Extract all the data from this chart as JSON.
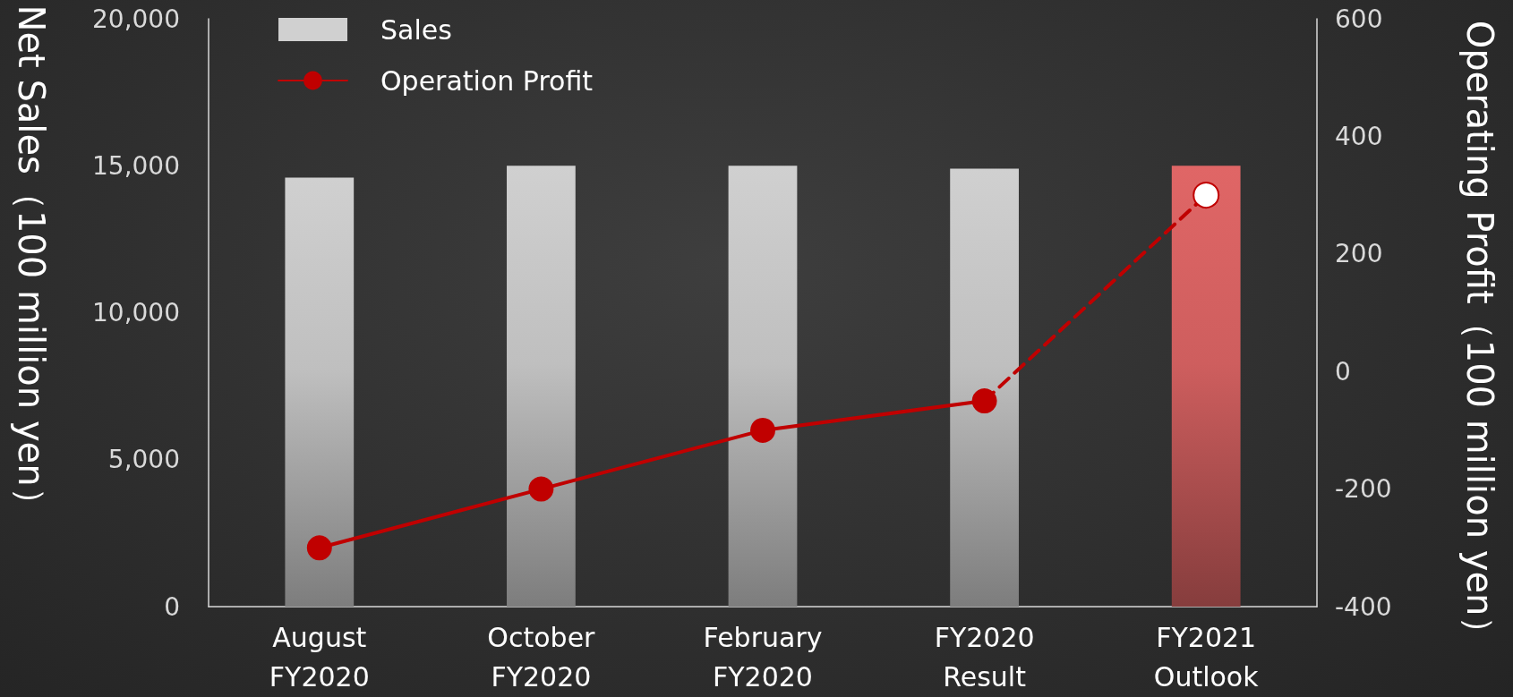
{
  "chart_data": {
    "type": "bar",
    "categories": [
      "August\nFY2020",
      "October\nFY2020",
      "February\nFY2020",
      "FY2020\nResult",
      "FY2021\nOutlook"
    ],
    "ylabel": "Net Sales（100 million yen）",
    "y2label": "Operating Profit（100 million yen）",
    "series": [
      {
        "name": "Sales",
        "colors": [
          "#d0d0d0",
          "#d0d0d0",
          "#d0d0d0",
          "#d0d0d0",
          "#e06666"
        ],
        "values": [
          14600,
          15000,
          15000,
          14900,
          15000
        ]
      },
      {
        "name": "Operation Profit",
        "type": "line",
        "axis": "y2",
        "color": "#c00000",
        "marker": "circle",
        "line_style": "solid",
        "values": [
          -300,
          -200,
          -100,
          -50,
          null
        ]
      },
      {
        "type": "line",
        "axis": "y2",
        "color": "#c00000",
        "marker": "circle",
        "line_style": "dashed",
        "values": [
          null,
          null,
          null,
          -50,
          300
        ]
      }
    ],
    "ylim": [
      0,
      20000
    ],
    "yticks": [
      {
        "value": 0,
        "label": "0"
      },
      {
        "value": 5000,
        "label": "5,000"
      },
      {
        "value": 10000,
        "label": "10,000"
      },
      {
        "value": 15000,
        "label": "15,000"
      },
      {
        "value": 20000,
        "label": "20,000"
      }
    ],
    "y2lim": [
      -400,
      600
    ],
    "y2ticks": [
      -400,
      -200,
      0,
      200,
      400,
      600
    ],
    "grid": false,
    "legend": "top left"
  }
}
